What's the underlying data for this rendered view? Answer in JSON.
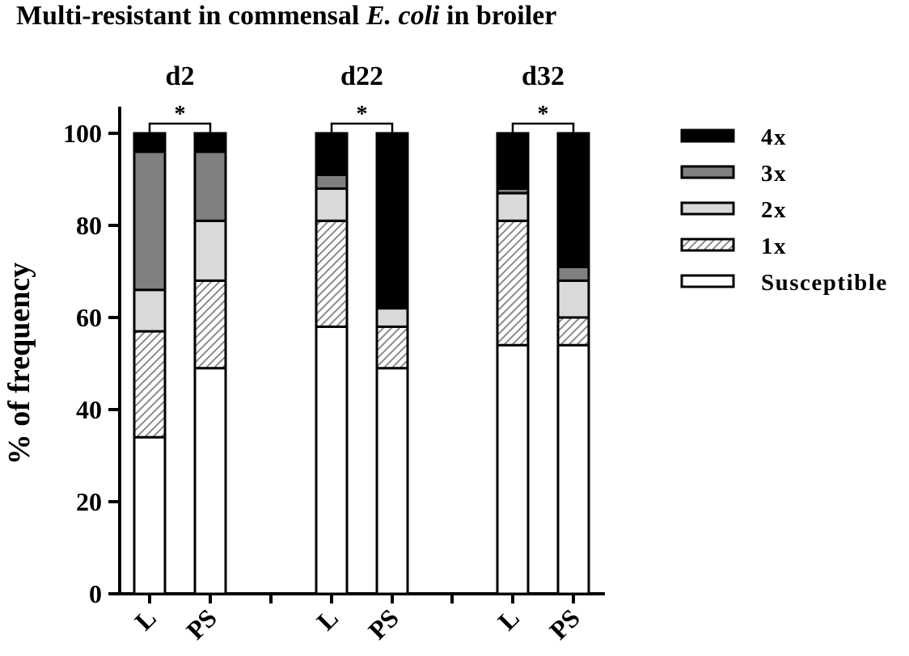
{
  "chart_data": {
    "type": "bar",
    "stacked": true,
    "title_prefix": "Multi-resistant in commensal ",
    "title_italic": "E. coli",
    "title_suffix": " in broiler",
    "ylabel": "% of frequency",
    "ylim": [
      0,
      100
    ],
    "yticks": [
      0,
      20,
      40,
      60,
      80,
      100
    ],
    "grid": false,
    "legend_position": "right",
    "groups": [
      {
        "label": "d2",
        "categories": [
          "L",
          "PS"
        ],
        "significance": "*"
      },
      {
        "label": "d22",
        "categories": [
          "L",
          "PS"
        ],
        "significance": "*"
      },
      {
        "label": "d32",
        "categories": [
          "L",
          "PS"
        ],
        "significance": "*"
      }
    ],
    "categories": [
      "L",
      "PS",
      "L",
      "PS",
      "L",
      "PS"
    ],
    "series": [
      {
        "name": "Susceptible",
        "fill": "#ffffff",
        "pattern": "none",
        "values": [
          34,
          49,
          58,
          49,
          54,
          54
        ]
      },
      {
        "name": "1x",
        "fill": "#ffffff",
        "pattern": "hatch",
        "values": [
          23,
          19,
          23,
          9,
          27,
          6
        ]
      },
      {
        "name": "2x",
        "fill": "#d9d9d9",
        "pattern": "none",
        "values": [
          9,
          13,
          7,
          4,
          6,
          8
        ]
      },
      {
        "name": "3x",
        "fill": "#808080",
        "pattern": "none",
        "values": [
          30,
          15,
          3,
          0,
          1,
          3
        ]
      },
      {
        "name": "4x",
        "fill": "#000000",
        "pattern": "none",
        "values": [
          4,
          4,
          9,
          38,
          12,
          29
        ]
      }
    ]
  }
}
